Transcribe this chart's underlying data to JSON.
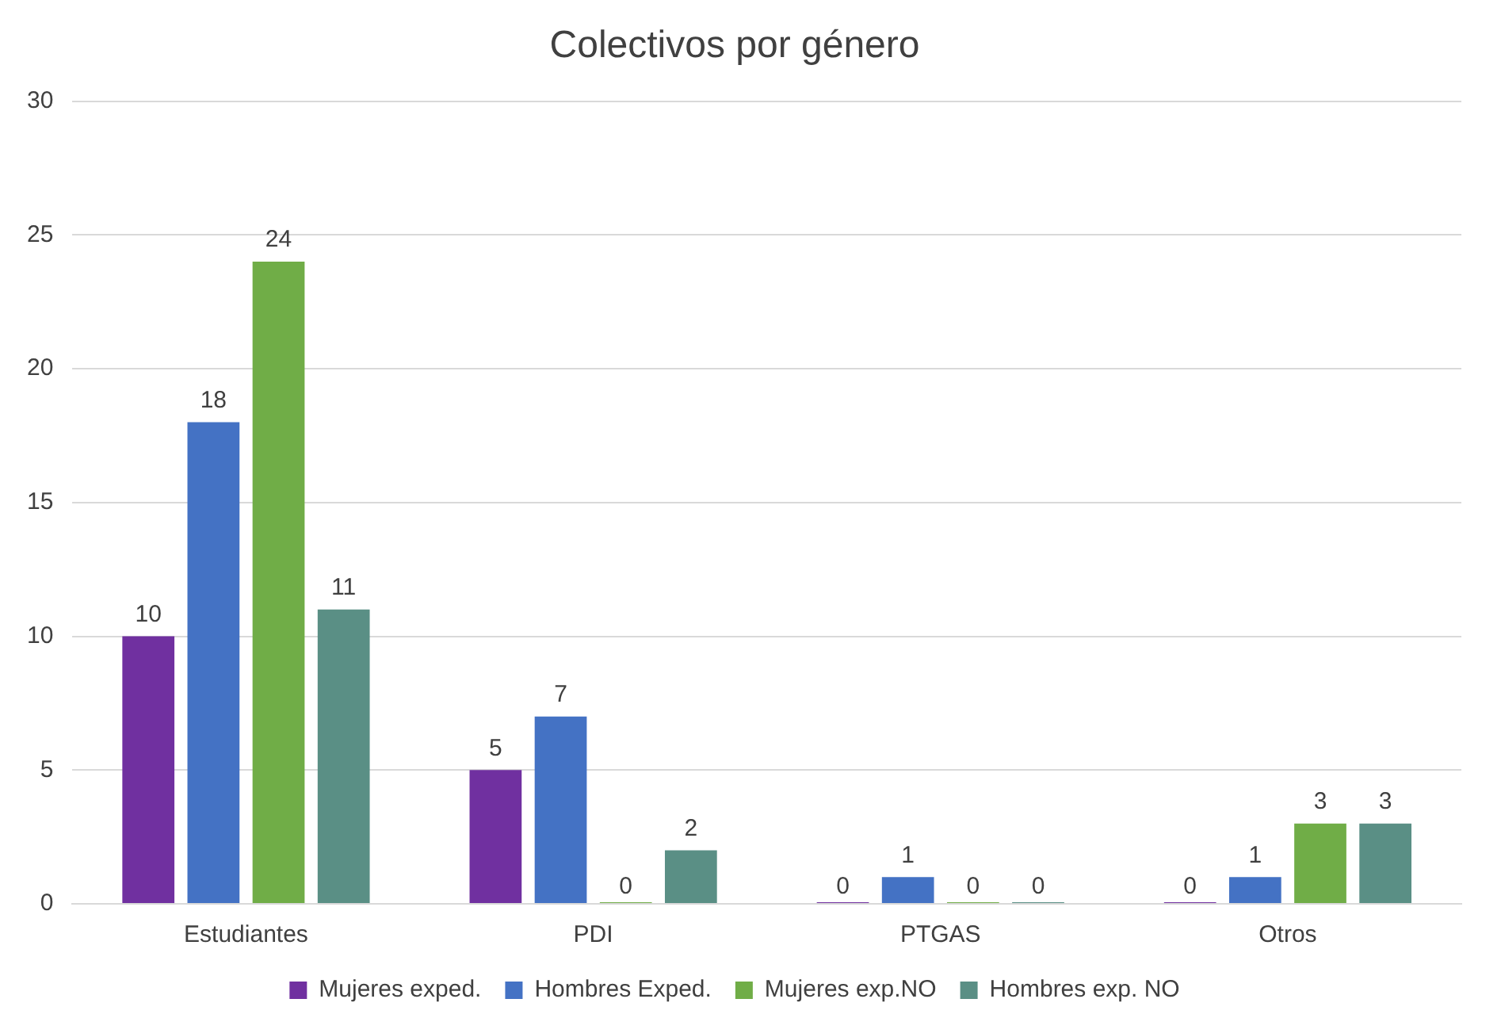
{
  "chart_data": {
    "type": "bar",
    "title": "Colectivos por género",
    "categories": [
      "Estudiantes",
      "PDI",
      "PTGAS",
      "Otros"
    ],
    "series": [
      {
        "name": "Mujeres exped.",
        "color": "#7030a0",
        "values": [
          10,
          5,
          0,
          0
        ]
      },
      {
        "name": "Hombres Exped.",
        "color": "#4472c4",
        "values": [
          18,
          7,
          1,
          1
        ]
      },
      {
        "name": "Mujeres exp.NO",
        "color": "#70ad47",
        "values": [
          24,
          0,
          0,
          3
        ]
      },
      {
        "name": "Hombres exp. NO",
        "color": "#5a8f85",
        "values": [
          11,
          2,
          0,
          3
        ]
      }
    ],
    "ylim": [
      0,
      30
    ],
    "yticks": [
      0,
      5,
      10,
      15,
      20,
      25,
      30
    ],
    "grid": "y",
    "legend": "bottom",
    "data_labels": true
  }
}
